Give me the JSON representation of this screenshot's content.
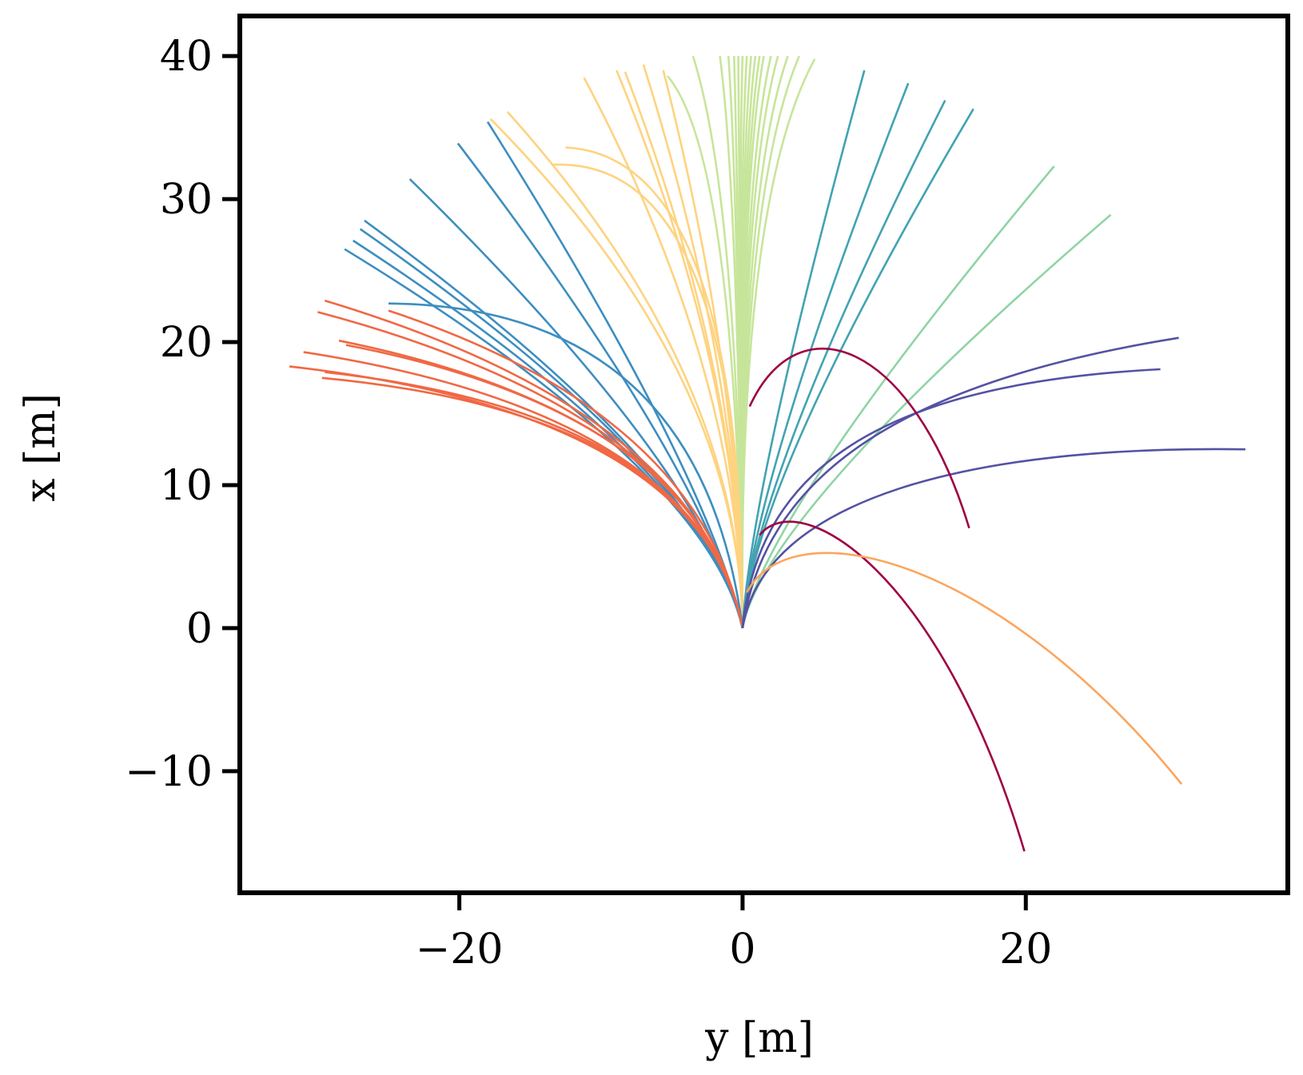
{
  "chart_data": {
    "type": "line",
    "title": "",
    "xlabel": "y [m]",
    "ylabel": "x [m]",
    "xlim": [
      -35.5,
      38.5
    ],
    "ylim": [
      -18.5,
      42.8
    ],
    "xticks": [
      -20,
      0,
      20
    ],
    "yticks": [
      -10,
      0,
      10,
      20,
      30,
      40
    ],
    "xtick_labels": [
      "−20",
      "0",
      "20"
    ],
    "ytick_labels": [
      "−10",
      "0",
      "10",
      "20",
      "30",
      "40"
    ],
    "grid": false,
    "legend": "none",
    "series": [
      {
        "name": "green-0",
        "color": "#c7e59a",
        "curve": "quad",
        "control": [
          -0.3,
          30.0
        ],
        "ends": [
          [
            -3.5,
            40
          ],
          [
            -1.6,
            40
          ],
          [
            -1.0,
            40
          ],
          [
            -0.6,
            40
          ],
          [
            -0.3,
            40
          ],
          [
            0.0,
            40
          ],
          [
            0.3,
            40
          ],
          [
            0.6,
            40
          ],
          [
            0.9,
            40
          ],
          [
            1.2,
            40
          ],
          [
            1.5,
            40
          ],
          [
            2.0,
            40
          ],
          [
            2.5,
            40
          ],
          [
            3.2,
            40
          ],
          [
            4.0,
            40
          ],
          [
            5.1,
            39.8
          ]
        ]
      },
      {
        "name": "green-1",
        "color": "#c7e59a",
        "curve": "quad",
        "control": [
          -0.5,
          33.0
        ],
        "ends": [
          [
            -5.3,
            38.6
          ]
        ]
      },
      {
        "name": "yellow-0",
        "color": "#fed380",
        "curve": "quad",
        "control": [
          -0.2,
          18.0
        ],
        "ends": [
          [
            -11.2,
            38.5
          ],
          [
            -8.9,
            39.0
          ],
          [
            -8.3,
            38.9
          ],
          [
            -7.0,
            39.4
          ],
          [
            -5.6,
            39.0
          ],
          [
            -17.8,
            35.6
          ],
          [
            -16.6,
            36.1
          ]
        ]
      },
      {
        "name": "yellow-1",
        "color": "#fed380",
        "curve": "quad",
        "control": [
          0.0,
          33.0
        ],
        "ends": [
          [
            -12.5,
            33.6
          ],
          [
            -13.4,
            32.4
          ]
        ]
      },
      {
        "name": "blue",
        "color": "#3d8ec0",
        "curve": "quad",
        "control": [
          -2.5,
          11.0
        ],
        "ends": [
          [
            -20.1,
            33.9
          ],
          [
            -18.0,
            35.4
          ],
          [
            -23.5,
            31.4
          ],
          [
            -26.7,
            28.5
          ],
          [
            -27.0,
            27.9
          ],
          [
            -27.5,
            27.1
          ],
          [
            -28.1,
            26.5
          ]
        ]
      },
      {
        "name": "blue-1",
        "color": "#3d8ec0",
        "curve": "quad",
        "control": [
          -3.0,
          22.5
        ],
        "ends": [
          [
            -25.0,
            22.7
          ]
        ]
      },
      {
        "name": "red",
        "color": "#f06844",
        "curve": "quad",
        "control": [
          -3.0,
          15.0
        ],
        "ends": [
          [
            -29.5,
            22.9
          ],
          [
            -30.0,
            22.1
          ],
          [
            -28.5,
            20.1
          ],
          [
            -28.0,
            19.8
          ],
          [
            -31.0,
            19.3
          ],
          [
            -32.0,
            18.3
          ],
          [
            -29.5,
            17.9
          ],
          [
            -29.7,
            17.5
          ],
          [
            -25.0,
            22.2
          ]
        ]
      },
      {
        "name": "teal",
        "color": "#42a3b2",
        "curve": "quad",
        "control": [
          0.6,
          10.0
        ],
        "ends": [
          [
            8.6,
            39.0
          ],
          [
            11.7,
            38.1
          ],
          [
            14.3,
            36.9
          ],
          [
            16.3,
            36.3
          ]
        ]
      },
      {
        "name": "mint",
        "color": "#8fd4a4",
        "curve": "quad",
        "control": [
          1.5,
          8.0
        ],
        "ends": [
          [
            22.0,
            32.3
          ],
          [
            26.0,
            28.9
          ]
        ]
      },
      {
        "name": "indigo-0",
        "color": "#5452a2",
        "curve": "cubic",
        "controls": [
          [
            1.0,
            10.0
          ],
          [
            8.0,
            17.0
          ]
        ],
        "end": [
          29.5,
          18.1
        ]
      },
      {
        "name": "indigo-1",
        "color": "#5452a2",
        "curve": "cubic",
        "controls": [
          [
            1.5,
            10.0
          ],
          [
            10.0,
            17.0
          ]
        ],
        "end": [
          30.8,
          20.3
        ]
      },
      {
        "name": "indigo-2",
        "color": "#5452a2",
        "curve": "cubic",
        "controls": [
          [
            1.5,
            9.0
          ],
          [
            16.0,
            12.8
          ]
        ],
        "end": [
          35.5,
          12.5
        ]
      },
      {
        "name": "purple-0",
        "color": "#9e0142",
        "curve": "cubic",
        "start": [
          1.2,
          6.5
        ],
        "controls": [
          [
            4.0,
            10.0
          ],
          [
            14.0,
            4.0
          ]
        ],
        "end": [
          19.9,
          -15.6
        ]
      },
      {
        "name": "purple-1",
        "color": "#9e0142",
        "curve": "cubic",
        "start": [
          0.5,
          15.5
        ],
        "controls": [
          [
            4.0,
            23.0
          ],
          [
            12.0,
            20.0
          ]
        ],
        "end": [
          16.0,
          7.0
        ]
      },
      {
        "name": "orange",
        "color": "#fca55d",
        "curve": "cubic",
        "start": [
          0.3,
          2.5
        ],
        "controls": [
          [
            3.5,
            8.5
          ],
          [
            18.0,
            5.0
          ]
        ],
        "end": [
          31.0,
          -10.9
        ]
      }
    ]
  }
}
